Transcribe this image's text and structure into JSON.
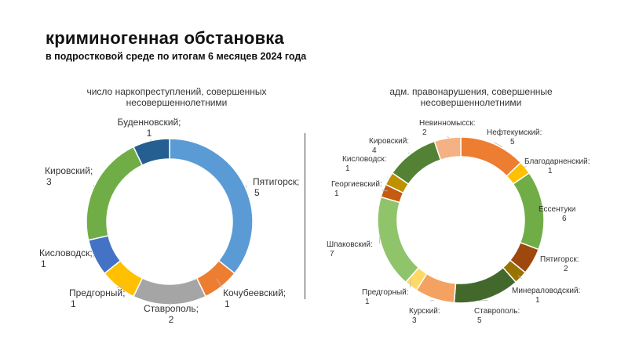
{
  "header": {
    "title": "криминогенная обстановка",
    "subtitle": "в подростковой  среде по итогам 6 месяцев 2024 года"
  },
  "chart_data": [
    {
      "type": "pie",
      "title": "число наркопреступлений, совершенных несовершеннолетними",
      "slices": [
        {
          "label": "Пятигорск;",
          "value": 5,
          "color": "#5B9BD5"
        },
        {
          "label": "Кочубеевский;",
          "value": 1,
          "color": "#ED7D31"
        },
        {
          "label": "Ставрополь;",
          "value": 2,
          "color": "#A5A5A5"
        },
        {
          "label": "Предгорный;",
          "value": 1,
          "color": "#FFC000"
        },
        {
          "label": "Кисловодск;",
          "value": 1,
          "color": "#4472C4"
        },
        {
          "label": "Кировский;",
          "value": 3,
          "color": "#70AD47"
        },
        {
          "label": "Буденновский;",
          "value": 1,
          "color": "#255E91"
        }
      ]
    },
    {
      "type": "pie",
      "title": "адм. правонарушения, совершенные несовершеннолетними",
      "slices": [
        {
          "label": "Нефтекумский:",
          "value": 5,
          "color": "#ED7D31"
        },
        {
          "label": "Благодарненский:",
          "value": 1,
          "color": "#FFC000"
        },
        {
          "label": "Ессентуки",
          "value": 6,
          "color": "#70AD47"
        },
        {
          "label": "Пятигорск:",
          "value": 2,
          "color": "#9E480E"
        },
        {
          "label": "Минераловодский:",
          "value": 1,
          "color": "#997300"
        },
        {
          "label": "Ставрополь:",
          "value": 5,
          "color": "#43682B"
        },
        {
          "label": "Курский:",
          "value": 3,
          "color": "#F4A261"
        },
        {
          "label": "Предгорный:",
          "value": 1,
          "color": "#FFD966"
        },
        {
          "label": "Шпаковский:",
          "value": 7,
          "color": "#8FC46A"
        },
        {
          "label": "Георгиевский:",
          "value": 1,
          "color": "#C55A11"
        },
        {
          "label": "Кисловодск:",
          "value": 1,
          "color": "#BF9000"
        },
        {
          "label": "Кировский:",
          "value": 4,
          "color": "#548235"
        },
        {
          "label": "Невинномысск:",
          "value": 2,
          "color": "#F4B183"
        }
      ]
    }
  ]
}
